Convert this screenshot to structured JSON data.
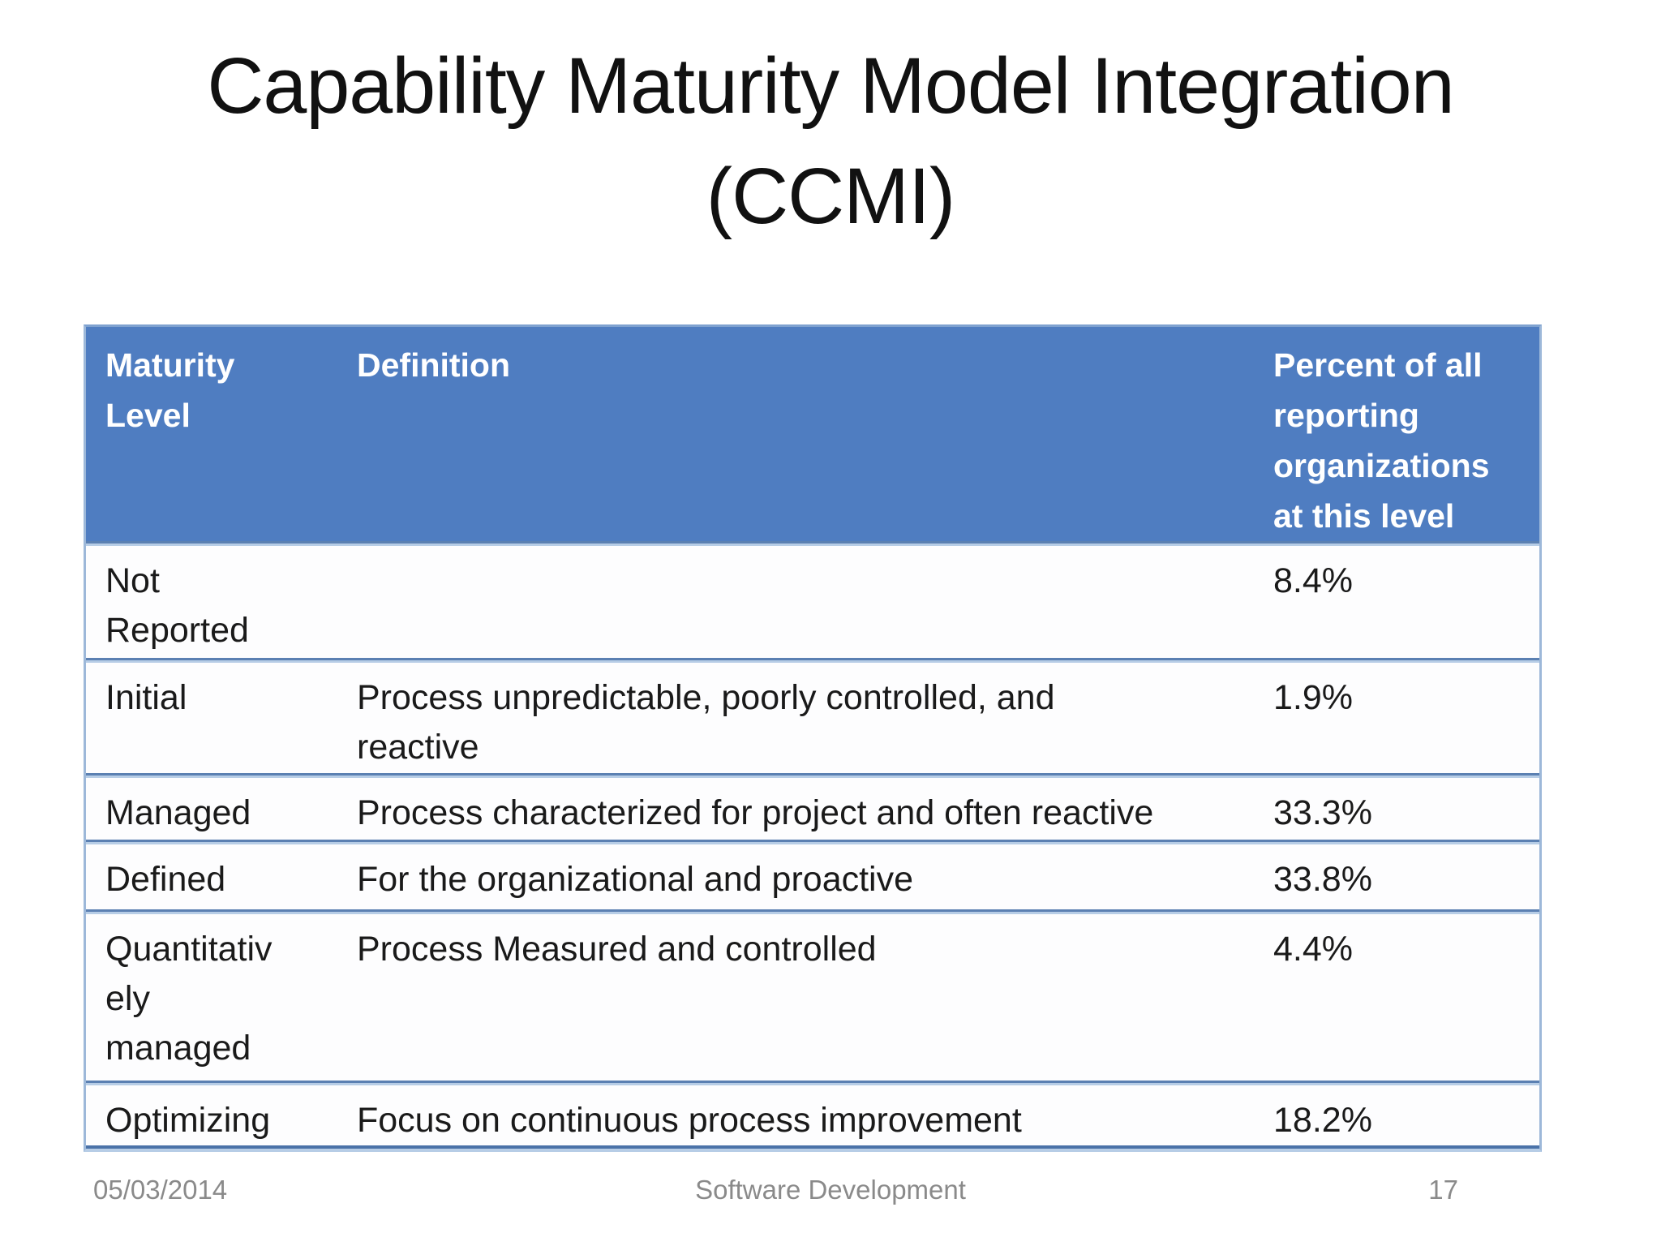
{
  "slide": {
    "title": "Capability Maturity Model Integration\n(CCMI)"
  },
  "table": {
    "headers": {
      "maturity_level": "Maturity\nLevel",
      "definition": "Definition",
      "percent": "Percent of all\nreporting\norganizations\nat this level"
    },
    "rows": [
      {
        "level": "Not\nReported",
        "definition": "",
        "percent": "8.4%"
      },
      {
        "level": "Initial",
        "definition": "Process unpredictable, poorly controlled, and\nreactive",
        "percent": "1.9%"
      },
      {
        "level": "Managed",
        "definition": "Process characterized for project and often reactive",
        "percent": "33.3%"
      },
      {
        "level": "Defined",
        "definition": "For the organizational and proactive",
        "percent": "33.8%"
      },
      {
        "level": "Quantitativ\nely\nmanaged",
        "definition": "Process Measured and controlled",
        "percent": "4.4%"
      },
      {
        "level": "Optimizing",
        "definition": "Focus on continuous process improvement",
        "percent": "18.2%"
      }
    ]
  },
  "footer": {
    "date": "05/03/2014",
    "center": "Software Development",
    "page": "17"
  },
  "colors": {
    "header_bg": "#4f7dc1",
    "header_text": "#ffffff",
    "sep_dark": "#5b80b2",
    "sep_light": "#b7cde6",
    "outer_border": "#9db8d9",
    "bottom_dark": "#4a72a8",
    "row_bg": "#fdfdfe",
    "body_text": "#1a1a1a",
    "footer_text": "#8a8a8a"
  }
}
